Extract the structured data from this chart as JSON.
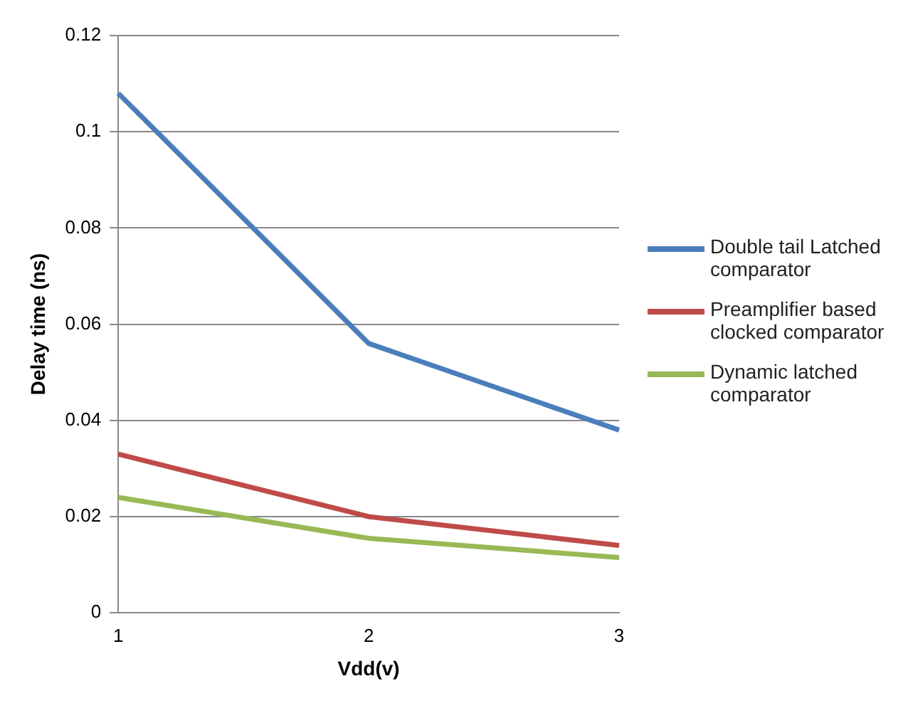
{
  "chart_data": {
    "type": "line",
    "xlabel": "Vdd(v)",
    "ylabel": "Delay time (ns)",
    "categories": [
      "1",
      "2",
      "3"
    ],
    "series": [
      {
        "name": "Double tail Latched comparator",
        "color": "#4a7ebb",
        "values": [
          0.108,
          0.056,
          0.038
        ]
      },
      {
        "name": "Preamplifier based clocked comparator",
        "color": "#be4b48",
        "values": [
          0.033,
          0.02,
          0.014
        ]
      },
      {
        "name": "Dynamic latched comparator",
        "color": "#98b954",
        "values": [
          0.024,
          0.0155,
          0.0115
        ]
      }
    ],
    "ylim": [
      0,
      0.12
    ],
    "yticks": [
      0,
      0.02,
      0.04,
      0.06,
      0.08,
      0.1,
      0.12
    ],
    "grid": "y",
    "legend": "right",
    "marker": "none",
    "line_style": "solid"
  }
}
